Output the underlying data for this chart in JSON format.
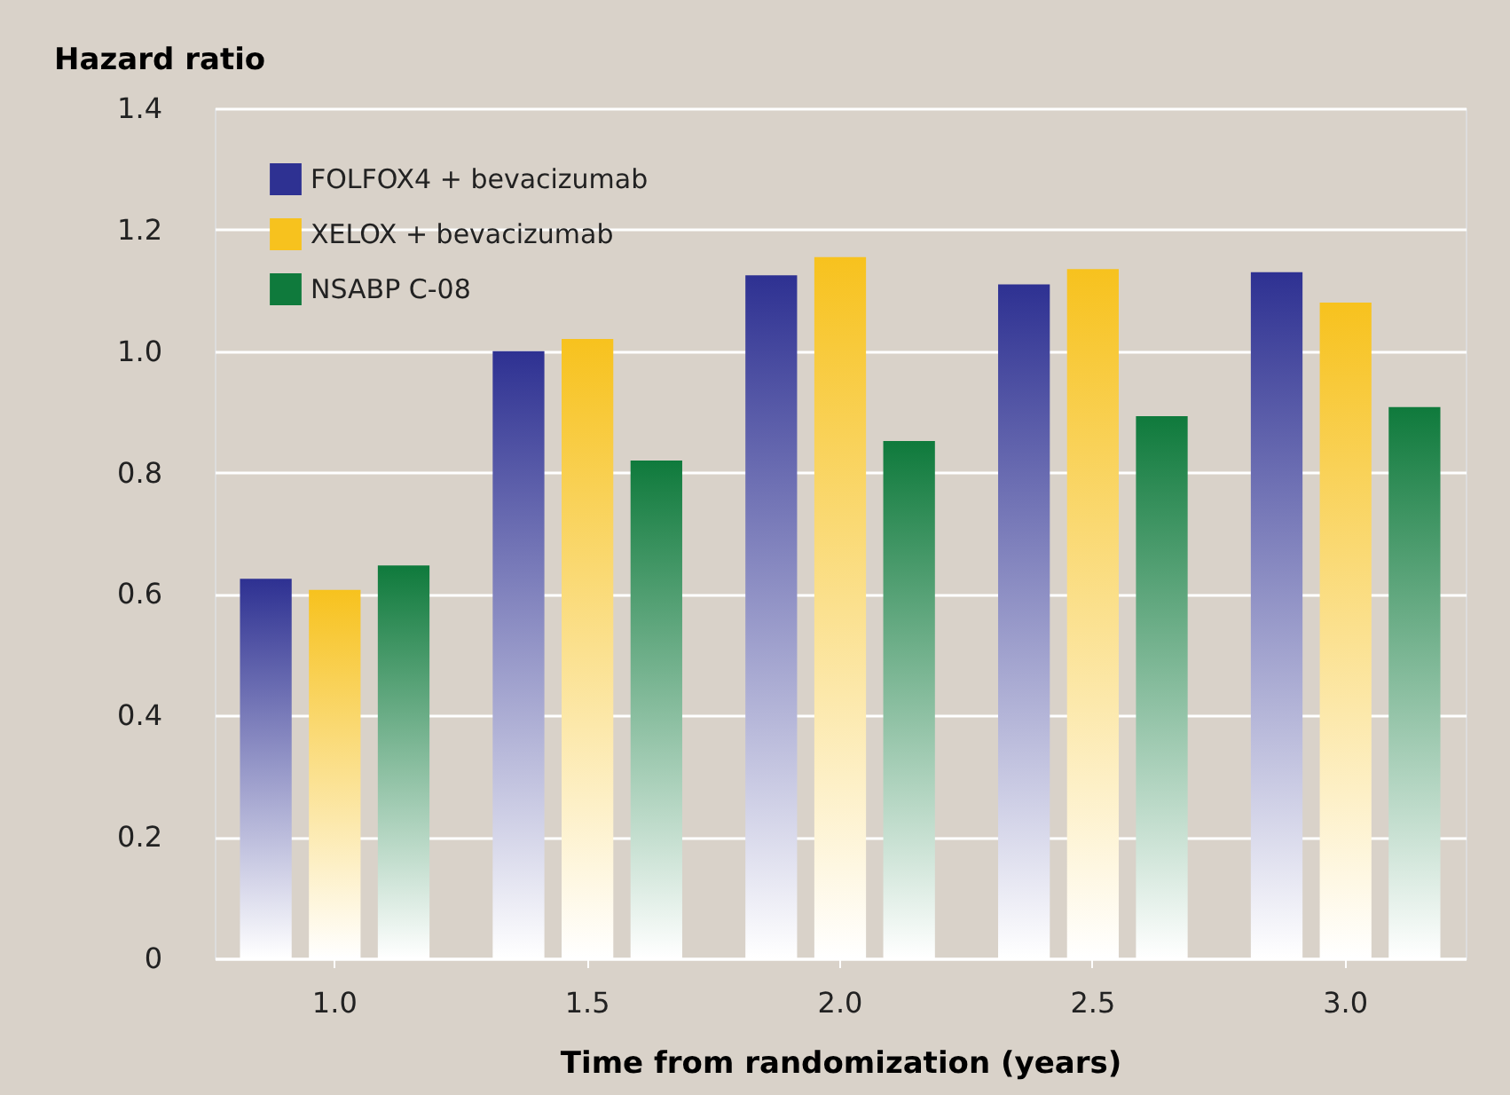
{
  "chart_data": {
    "type": "bar",
    "ylabel": "Hazard ratio",
    "xlabel": "Time from randomization (years)",
    "categories": [
      "1.0",
      "1.5",
      "2.0",
      "2.5",
      "3.0"
    ],
    "series": [
      {
        "name": "FOLFOX4 + bevacizumab",
        "color": "#2e3192",
        "values": [
          0.625,
          1.0,
          1.125,
          1.11,
          1.13
        ]
      },
      {
        "name": "XELOX + bevacizumab",
        "color": "#f7c21e",
        "values": [
          0.607,
          1.02,
          1.155,
          1.135,
          1.08
        ]
      },
      {
        "name": "NSABP C-08",
        "color": "#0f7a3c",
        "values": [
          0.647,
          0.82,
          0.852,
          0.893,
          0.908
        ]
      }
    ],
    "ylim": [
      0,
      1.4
    ],
    "yticks": [
      {
        "value": 0,
        "label": "0"
      },
      0.2,
      0.4,
      0.6,
      0.8,
      {
        "value": 1.0,
        "label": "1.0"
      },
      1.2,
      1.4
    ],
    "grid": "y",
    "legend": "top left"
  }
}
